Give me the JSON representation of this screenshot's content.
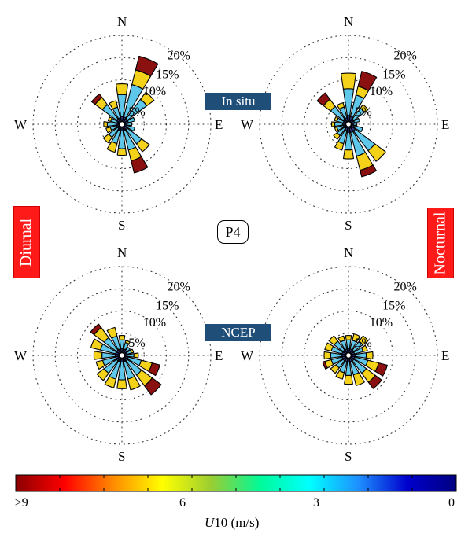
{
  "station_label": "P4",
  "row_labels": {
    "top": "In situ",
    "bottom": "NCEP"
  },
  "column_labels": {
    "left": "Diurnal",
    "right": "Nocturnal"
  },
  "compass": {
    "n": "N",
    "s": "S",
    "e": "E",
    "w": "W"
  },
  "rings": [
    {
      "value": 5,
      "label": "5%"
    },
    {
      "value": 10,
      "label": "10%"
    },
    {
      "value": 15,
      "label": "15%"
    },
    {
      "value": 20,
      "label": "20%"
    }
  ],
  "colors": {
    "speed_bins": [
      "#1a237e",
      "#3949ab",
      "#5fc8ea",
      "#f5d21a",
      "#ffa500",
      "#8b1010"
    ],
    "row_label_bg": "#1f4e79",
    "column_label_bg": "#ff1a1a"
  },
  "colorbar": {
    "tick_labels": [
      "≥9",
      "6",
      "3",
      "0"
    ],
    "title_var": "U",
    "title_rest": "10 (m/s)",
    "stops": [
      "#8b0000",
      "#ff0000",
      "#ff8c00",
      "#ffff00",
      "#9acd32",
      "#00fa9a",
      "#00ffff",
      "#1e90ff",
      "#0000cd",
      "#000080"
    ]
  },
  "chart_data": [
    {
      "type": "windrose",
      "row": "In situ",
      "column": "Diurnal",
      "directions": [
        0,
        22.5,
        45,
        67.5,
        90,
        112.5,
        135,
        157.5,
        180,
        202.5,
        225,
        247.5,
        270,
        292.5,
        315,
        337.5
      ],
      "bins_ms": [
        "0-1",
        "1-3",
        "3-6",
        "6-8",
        "8-9",
        "≥9"
      ],
      "series": [
        [
          0.5,
          1.2,
          5.0,
          2.4,
          0.0,
          0.0
        ],
        [
          0.5,
          1.2,
          7.5,
          3.4,
          0.0,
          3.2
        ],
        [
          0.5,
          1.0,
          5.5,
          2.0,
          0.0,
          0.0
        ],
        [
          0.5,
          1.0,
          1.5,
          0.0,
          0.0,
          0.0
        ],
        [
          0.4,
          0.8,
          1.0,
          0.0,
          0.0,
          0.0
        ],
        [
          0.5,
          0.7,
          1.8,
          0.0,
          0.0,
          0.0
        ],
        [
          0.5,
          1.0,
          4.0,
          2.2,
          0.0,
          0.0
        ],
        [
          0.5,
          1.0,
          4.5,
          2.5,
          0.0,
          2.8
        ],
        [
          0.5,
          1.0,
          4.0,
          1.5,
          0.0,
          0.0
        ],
        [
          0.5,
          1.0,
          3.0,
          2.0,
          0.0,
          0.0
        ],
        [
          0.4,
          0.8,
          2.5,
          1.5,
          0.0,
          0.0
        ],
        [
          0.4,
          0.8,
          1.5,
          1.0,
          0.0,
          0.0
        ],
        [
          0.5,
          0.8,
          2.0,
          0.8,
          0.0,
          0.0
        ],
        [
          0.4,
          0.7,
          1.5,
          0.6,
          0.0,
          0.0
        ],
        [
          0.5,
          1.0,
          4.0,
          2.0,
          0.0,
          1.0
        ],
        [
          0.5,
          1.0,
          2.5,
          1.5,
          0.0,
          0.0
        ]
      ]
    },
    {
      "type": "windrose",
      "row": "In situ",
      "column": "Nocturnal",
      "directions": [
        0,
        22.5,
        45,
        67.5,
        90,
        112.5,
        135,
        157.5,
        180,
        202.5,
        225,
        247.5,
        270,
        292.5,
        315,
        337.5
      ],
      "bins_ms": [
        "0-1",
        "1-3",
        "3-6",
        "6-8",
        "8-9",
        "≥9"
      ],
      "series": [
        [
          0.6,
          1.4,
          6.0,
          3.5,
          0.0,
          0.0
        ],
        [
          0.6,
          1.2,
          5.0,
          2.0,
          0.0,
          3.5
        ],
        [
          0.5,
          1.0,
          3.0,
          1.0,
          0.0,
          0.0
        ],
        [
          0.5,
          0.9,
          1.2,
          0.0,
          0.0,
          0.0
        ],
        [
          0.4,
          0.7,
          0.8,
          0.0,
          0.0,
          0.0
        ],
        [
          0.5,
          0.8,
          2.0,
          0.0,
          0.0,
          0.0
        ],
        [
          0.6,
          1.3,
          5.5,
          3.0,
          0.0,
          0.0
        ],
        [
          0.6,
          1.3,
          5.5,
          3.3,
          0.0,
          1.5
        ],
        [
          0.6,
          1.2,
          4.0,
          2.0,
          0.0,
          0.0
        ],
        [
          0.5,
          1.0,
          3.0,
          1.5,
          0.0,
          0.0
        ],
        [
          0.4,
          0.8,
          2.0,
          1.0,
          0.0,
          0.0
        ],
        [
          0.4,
          0.8,
          1.5,
          0.5,
          0.0,
          0.0
        ],
        [
          0.5,
          0.8,
          1.8,
          0.7,
          0.0,
          0.0
        ],
        [
          0.4,
          0.8,
          1.5,
          0.6,
          0.0,
          0.0
        ],
        [
          0.5,
          1.0,
          3.5,
          2.0,
          0.0,
          1.8
        ],
        [
          0.5,
          1.0,
          2.5,
          1.0,
          0.0,
          0.0
        ]
      ]
    },
    {
      "type": "windrose",
      "row": "NCEP",
      "column": "Diurnal",
      "directions": [
        0,
        22.5,
        45,
        67.5,
        90,
        112.5,
        135,
        157.5,
        180,
        202.5,
        225,
        247.5,
        270,
        292.5,
        315,
        337.5
      ],
      "bins_ms": [
        "0-1",
        "1-3",
        "3-6",
        "6-8",
        "8-9",
        "≥9"
      ],
      "series": [
        [
          0.5,
          1.0,
          2.0,
          1.0,
          0.0,
          0.0
        ],
        [
          0.5,
          1.0,
          1.5,
          0.5,
          0.0,
          0.0
        ],
        [
          0.5,
          0.8,
          1.0,
          0.0,
          0.0,
          0.0
        ],
        [
          0.4,
          0.8,
          1.0,
          0.5,
          0.0,
          0.0
        ],
        [
          0.4,
          0.8,
          1.5,
          1.0,
          0.0,
          0.0
        ],
        [
          0.5,
          1.0,
          3.0,
          2.5,
          0.0,
          1.8
        ],
        [
          0.5,
          1.0,
          4.0,
          3.0,
          0.0,
          2.5
        ],
        [
          0.5,
          1.0,
          4.0,
          2.5,
          0.0,
          0.0
        ],
        [
          0.5,
          1.0,
          4.0,
          2.0,
          0.0,
          0.0
        ],
        [
          0.5,
          1.0,
          4.0,
          2.0,
          0.0,
          0.0
        ],
        [
          0.5,
          1.0,
          3.5,
          2.0,
          0.0,
          0.0
        ],
        [
          0.5,
          1.0,
          3.0,
          1.5,
          0.0,
          0.0
        ],
        [
          0.5,
          1.0,
          3.0,
          1.8,
          0.0,
          0.0
        ],
        [
          0.5,
          1.0,
          3.5,
          2.2,
          0.0,
          0.0
        ],
        [
          0.5,
          1.0,
          3.5,
          2.8,
          0.0,
          1.0
        ],
        [
          0.5,
          1.0,
          3.0,
          2.0,
          0.0,
          0.0
        ]
      ]
    },
    {
      "type": "windrose",
      "row": "NCEP",
      "column": "Nocturnal",
      "directions": [
        0,
        22.5,
        45,
        67.5,
        90,
        112.5,
        135,
        157.5,
        180,
        202.5,
        225,
        247.5,
        270,
        292.5,
        315,
        337.5
      ],
      "bins_ms": [
        "0-1",
        "1-3",
        "3-6",
        "6-8",
        "8-9",
        "≥9"
      ],
      "series": [
        [
          0.5,
          1.0,
          2.0,
          1.0,
          0.0,
          0.0
        ],
        [
          0.5,
          1.0,
          2.0,
          1.5,
          0.0,
          0.0
        ],
        [
          0.5,
          1.0,
          2.5,
          1.5,
          0.0,
          0.0
        ],
        [
          0.4,
          1.0,
          2.0,
          1.0,
          0.0,
          0.0
        ],
        [
          0.5,
          1.0,
          2.5,
          1.5,
          0.0,
          0.0
        ],
        [
          0.5,
          1.0,
          3.0,
          2.5,
          0.0,
          2.0
        ],
        [
          0.5,
          1.0,
          3.5,
          2.5,
          0.0,
          1.8
        ],
        [
          0.5,
          1.0,
          3.0,
          2.5,
          0.0,
          0.0
        ],
        [
          0.5,
          1.0,
          3.0,
          2.0,
          0.0,
          0.0
        ],
        [
          0.5,
          1.0,
          2.5,
          1.5,
          0.0,
          0.0
        ],
        [
          0.5,
          1.0,
          2.0,
          1.5,
          0.0,
          0.0
        ],
        [
          0.5,
          1.0,
          2.5,
          1.5,
          0.0,
          0.5
        ],
        [
          0.5,
          1.0,
          2.5,
          1.5,
          0.0,
          0.0
        ],
        [
          0.5,
          1.0,
          2.5,
          1.5,
          0.0,
          0.0
        ],
        [
          0.5,
          1.0,
          2.5,
          1.5,
          0.0,
          0.0
        ],
        [
          0.5,
          1.0,
          2.0,
          1.0,
          0.0,
          0.0
        ]
      ]
    }
  ]
}
